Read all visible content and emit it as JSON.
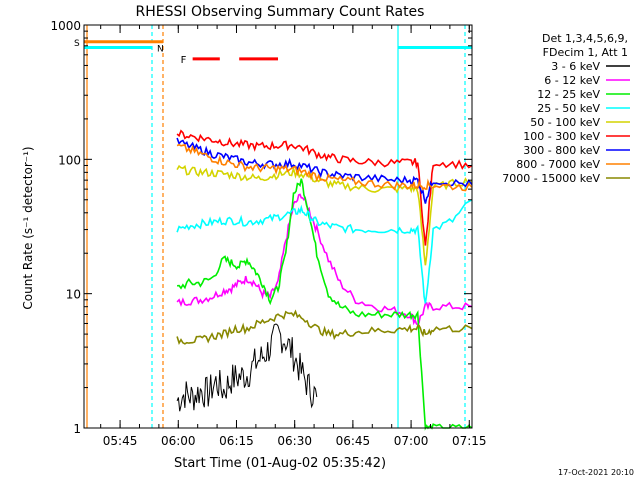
{
  "chart_data": {
    "type": "line",
    "title": "RHESSI Observing Summary Count Rates",
    "xlabel": "Start Time (01-Aug-02 05:35:42)",
    "ylabel": "Count Rate (s⁻¹ detector⁻¹)",
    "yscale": "log",
    "xlim": [
      0,
      100
    ],
    "ylim": [
      1,
      1000
    ],
    "x_ticks": [
      {
        "x": 9.3,
        "label": "05:45"
      },
      {
        "x": 24.3,
        "label": "06:00"
      },
      {
        "x": 39.3,
        "label": "06:15"
      },
      {
        "x": 54.3,
        "label": "06:30"
      },
      {
        "x": 69.3,
        "label": "06:45"
      },
      {
        "x": 84.3,
        "label": "07:00"
      },
      {
        "x": 99.3,
        "label": "07:15"
      }
    ],
    "y_ticks": [
      {
        "y": 1,
        "label": "1"
      },
      {
        "y": 10,
        "label": "10"
      },
      {
        "y": 100,
        "label": "100"
      },
      {
        "y": 1000,
        "label": "1000"
      }
    ],
    "grid": false,
    "legend": {
      "placement": "right",
      "header": [
        "Det 1,3,4,5,6,9,",
        "FDecim 1, Att 1"
      ]
    },
    "series": [
      {
        "name": "3 - 6 keV",
        "color": "#000000",
        "x": [
          24,
          26,
          28,
          30,
          32,
          34,
          36,
          38,
          40,
          42,
          44,
          46,
          48,
          50,
          52,
          54,
          56,
          58,
          60
        ],
        "y": [
          1.6,
          1.8,
          1.7,
          1.9,
          1.8,
          2.2,
          1.9,
          2.3,
          2.4,
          2.5,
          3.0,
          3.4,
          4.0,
          5.0,
          4.5,
          3.5,
          2.6,
          2.0,
          1.7
        ]
      },
      {
        "name": "6 - 12 keV",
        "color": "#ff00ff",
        "x": [
          24,
          27,
          30,
          33,
          36,
          38,
          40,
          42,
          44,
          46,
          48,
          50,
          52,
          54,
          56,
          58,
          60,
          63,
          66,
          70,
          75,
          80,
          84,
          86,
          88,
          90,
          95,
          100
        ],
        "y": [
          8.5,
          8.8,
          9.0,
          9.5,
          10.5,
          11,
          12,
          13,
          12,
          10,
          9.5,
          12,
          25,
          45,
          55,
          42,
          30,
          18,
          12,
          9,
          8,
          7.5,
          7,
          6,
          8,
          8,
          8,
          8
        ]
      },
      {
        "name": "12 - 25 keV",
        "color": "#00ee00",
        "x": [
          24,
          27,
          30,
          33,
          36,
          38,
          40,
          42,
          44,
          46,
          48,
          50,
          52,
          54,
          56,
          58,
          60,
          63,
          66,
          70,
          75,
          80,
          84,
          86,
          88,
          90,
          95,
          100
        ],
        "y": [
          11,
          12,
          12,
          13,
          18,
          17,
          16,
          18,
          15,
          12,
          9,
          11,
          20,
          55,
          70,
          40,
          20,
          10,
          8,
          7,
          7,
          7,
          7,
          7,
          1,
          1,
          1,
          1
        ]
      },
      {
        "name": "25 - 50 keV",
        "color": "#00ffff",
        "x": [
          24,
          27,
          30,
          33,
          36,
          39,
          42,
          45,
          48,
          51,
          54,
          56,
          58,
          60,
          63,
          66,
          70,
          75,
          80,
          84,
          86,
          88,
          90,
          95,
          100
        ],
        "y": [
          30,
          32,
          33,
          34,
          35,
          35,
          34,
          35,
          36,
          38,
          40,
          42,
          38,
          34,
          32,
          31,
          30,
          30,
          30,
          30,
          30,
          8,
          30,
          35,
          50
        ]
      },
      {
        "name": "50 - 100 keV",
        "color": "#d4d400",
        "x": [
          24,
          27,
          30,
          33,
          36,
          39,
          42,
          45,
          48,
          51,
          54,
          57,
          60,
          63,
          66,
          70,
          75,
          80,
          84,
          86,
          88,
          90,
          95,
          100
        ],
        "y": [
          85,
          82,
          80,
          79,
          78,
          76,
          74,
          72,
          75,
          78,
          80,
          77,
          70,
          66,
          64,
          62,
          60,
          60,
          61,
          60,
          16,
          62,
          66,
          70
        ]
      },
      {
        "name": "100 - 300 keV",
        "color": "#ff0000",
        "x": [
          24,
          27,
          30,
          33,
          36,
          39,
          42,
          45,
          48,
          51,
          54,
          57,
          60,
          63,
          66,
          70,
          75,
          80,
          84,
          86,
          88,
          90,
          95,
          100
        ],
        "y": [
          155,
          150,
          145,
          140,
          135,
          130,
          128,
          125,
          126,
          127,
          128,
          120,
          110,
          104,
          100,
          97,
          95,
          94,
          95,
          95,
          22,
          95,
          93,
          90
        ]
      },
      {
        "name": "300 - 800 keV",
        "color": "#0000ff",
        "x": [
          24,
          27,
          30,
          33,
          36,
          39,
          42,
          45,
          48,
          51,
          54,
          57,
          60,
          63,
          66,
          70,
          75,
          80,
          84,
          86,
          88,
          90,
          95,
          100
        ],
        "y": [
          135,
          126,
          118,
          110,
          105,
          100,
          95,
          93,
          92,
          92,
          93,
          88,
          82,
          78,
          76,
          74,
          72,
          70,
          70,
          70,
          50,
          70,
          67,
          65
        ]
      },
      {
        "name": "800 - 7000 keV",
        "color": "#ff8000",
        "x": [
          24,
          27,
          30,
          33,
          36,
          39,
          42,
          45,
          48,
          51,
          54,
          57,
          60,
          63,
          66,
          70,
          75,
          80,
          84,
          86,
          88,
          90,
          95,
          100
        ],
        "y": [
          125,
          118,
          110,
          102,
          96,
          92,
          88,
          86,
          86,
          85,
          84,
          80,
          75,
          72,
          70,
          68,
          66,
          64,
          64,
          64,
          64,
          64,
          63,
          62
        ]
      },
      {
        "name": "7000 - 15000 keV",
        "color": "#888800",
        "x": [
          24,
          27,
          30,
          33,
          36,
          39,
          42,
          45,
          48,
          51,
          54,
          57,
          60,
          63,
          66,
          70,
          75,
          80,
          84,
          86,
          88,
          90,
          95,
          100
        ],
        "y": [
          4.5,
          4.5,
          4.5,
          4.8,
          5,
          5.5,
          5.5,
          6,
          6.5,
          7,
          7,
          6.5,
          5.5,
          5,
          5,
          5.2,
          5.3,
          5.4,
          5.5,
          5.5,
          5,
          5.5,
          5.5,
          5.5
        ]
      }
    ],
    "annotations": {
      "s_flag_label": "S",
      "n_flag_label": "N",
      "f_flag_label": "F",
      "s_level": 750,
      "n_level": 680,
      "f_level": 560,
      "f_segments": [
        [
          28,
          35
        ],
        [
          40,
          50
        ]
      ]
    },
    "timestamp": "17-Oct-2021 20:10"
  }
}
